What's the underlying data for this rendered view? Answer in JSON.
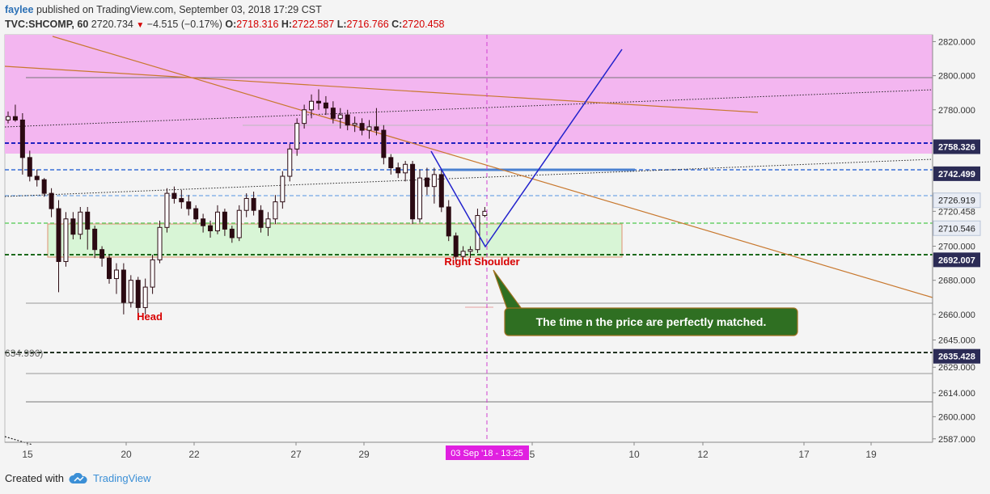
{
  "header": {
    "user": "faylee",
    "published": "published on TradingView.com, September 03, 2018 17:29 CST",
    "symbol": "TVC:SHCOMP, 60",
    "last": "2720.734",
    "change": "−4.515 (−0.17%)",
    "o_label": "O:",
    "o": "2718.316",
    "h_label": "H:",
    "h": "2722.587",
    "l_label": "L:",
    "l": "2716.766",
    "c_label": "C:",
    "c": "2720.458"
  },
  "footer": {
    "created": "Created with",
    "brand": "TradingView"
  },
  "colors": {
    "up": "#ffffff",
    "down": "#2b0a12",
    "zone_pink": "#f3b6f0",
    "zone_green": "#d8f5d6",
    "pattern": "#2222cc",
    "trend": "#c8782e",
    "price_tag": "#2b2b55"
  },
  "chart_data": {
    "type": "candlestick",
    "ylim": [
      2585,
      2824
    ],
    "y_ticks": [
      2587,
      2600,
      2614,
      2629,
      2645,
      2660,
      2680,
      2700,
      2720.458,
      2780,
      2800,
      2820
    ],
    "x_tick_labels": [
      "15",
      "20",
      "22",
      "27",
      "29",
      "5",
      "10",
      "12",
      "17",
      "19"
    ],
    "price_tags": [
      {
        "value": 2758.326,
        "label": "2758.326",
        "style": "dark"
      },
      {
        "value": 2742.499,
        "label": "2742.499",
        "style": "dark"
      },
      {
        "value": 2726.919,
        "label": "2726.919",
        "style": "light"
      },
      {
        "value": 2710.546,
        "label": "2710.546",
        "style": "light"
      },
      {
        "value": 2692.007,
        "label": "2692.007",
        "style": "dark"
      },
      {
        "value": 2635.428,
        "label": "2635.428",
        "style": "dark"
      }
    ],
    "cursor_label": "03 Sep '18 - 13:25",
    "left_partial_label": "634.996)",
    "annotations": {
      "head": "Head",
      "right_shoulder": "Right Shoulder",
      "callout": "The time n the price are perfectly matched."
    },
    "candles": [
      [
        2774,
        2779,
        2772,
        2776
      ],
      [
        2776,
        2783,
        2773,
        2774
      ],
      [
        2774,
        2778,
        2742,
        2752
      ],
      [
        2752,
        2756,
        2738,
        2741
      ],
      [
        2741,
        2745,
        2735,
        2739
      ],
      [
        2739,
        2740,
        2729,
        2731
      ],
      [
        2731,
        2734,
        2717,
        2722
      ],
      [
        2722,
        2727,
        2673,
        2691
      ],
      [
        2691,
        2720,
        2688,
        2716
      ],
      [
        2716,
        2720,
        2704,
        2707
      ],
      [
        2707,
        2723,
        2704,
        2720
      ],
      [
        2720,
        2723,
        2698,
        2710
      ],
      [
        2710,
        2712,
        2693,
        2698
      ],
      [
        2698,
        2700,
        2688,
        2693
      ],
      [
        2693,
        2695,
        2678,
        2681
      ],
      [
        2681,
        2690,
        2672,
        2686
      ],
      [
        2686,
        2690,
        2660,
        2667
      ],
      [
        2667,
        2683,
        2664,
        2680
      ],
      [
        2680,
        2682,
        2657,
        2664
      ],
      [
        2664,
        2681,
        2660,
        2676
      ],
      [
        2676,
        2695,
        2672,
        2692
      ],
      [
        2692,
        2715,
        2690,
        2711
      ],
      [
        2711,
        2734,
        2708,
        2731
      ],
      [
        2731,
        2735,
        2725,
        2728
      ],
      [
        2728,
        2733,
        2722,
        2726
      ],
      [
        2726,
        2730,
        2718,
        2722
      ],
      [
        2722,
        2724,
        2714,
        2716
      ],
      [
        2716,
        2719,
        2708,
        2712
      ],
      [
        2712,
        2715,
        2705,
        2709
      ],
      [
        2709,
        2724,
        2707,
        2720
      ],
      [
        2720,
        2722,
        2706,
        2710
      ],
      [
        2710,
        2712,
        2702,
        2705
      ],
      [
        2705,
        2724,
        2703,
        2721
      ],
      [
        2721,
        2731,
        2717,
        2728
      ],
      [
        2728,
        2732,
        2718,
        2721
      ],
      [
        2721,
        2724,
        2708,
        2711
      ],
      [
        2711,
        2720,
        2706,
        2716
      ],
      [
        2716,
        2730,
        2713,
        2726
      ],
      [
        2726,
        2744,
        2722,
        2741
      ],
      [
        2741,
        2760,
        2738,
        2757
      ],
      [
        2757,
        2775,
        2753,
        2772
      ],
      [
        2772,
        2783,
        2769,
        2780
      ],
      [
        2780,
        2789,
        2775,
        2785
      ],
      [
        2785,
        2792,
        2780,
        2784
      ],
      [
        2784,
        2788,
        2777,
        2781
      ],
      [
        2781,
        2785,
        2772,
        2775
      ],
      [
        2775,
        2781,
        2769,
        2777
      ],
      [
        2777,
        2780,
        2768,
        2771
      ],
      [
        2771,
        2776,
        2767,
        2772
      ],
      [
        2772,
        2775,
        2765,
        2768
      ],
      [
        2768,
        2774,
        2763,
        2770
      ],
      [
        2770,
        2781,
        2765,
        2768
      ],
      [
        2768,
        2771,
        2748,
        2752
      ],
      [
        2752,
        2754,
        2742,
        2746
      ],
      [
        2746,
        2749,
        2740,
        2743
      ],
      [
        2743,
        2750,
        2738,
        2748
      ],
      [
        2748,
        2750,
        2713,
        2716
      ],
      [
        2716,
        2745,
        2714,
        2740
      ],
      [
        2740,
        2746,
        2730,
        2735
      ],
      [
        2735,
        2746,
        2725,
        2742
      ],
      [
        2742,
        2745,
        2720,
        2723
      ],
      [
        2723,
        2727,
        2703,
        2706
      ],
      [
        2706,
        2708,
        2691,
        2694
      ],
      [
        2694,
        2700,
        2691,
        2697
      ],
      [
        2697,
        2700,
        2693,
        2698
      ],
      [
        2698,
        2722,
        2696,
        2718
      ],
      [
        2718,
        2723,
        2717,
        2720.458
      ]
    ]
  }
}
